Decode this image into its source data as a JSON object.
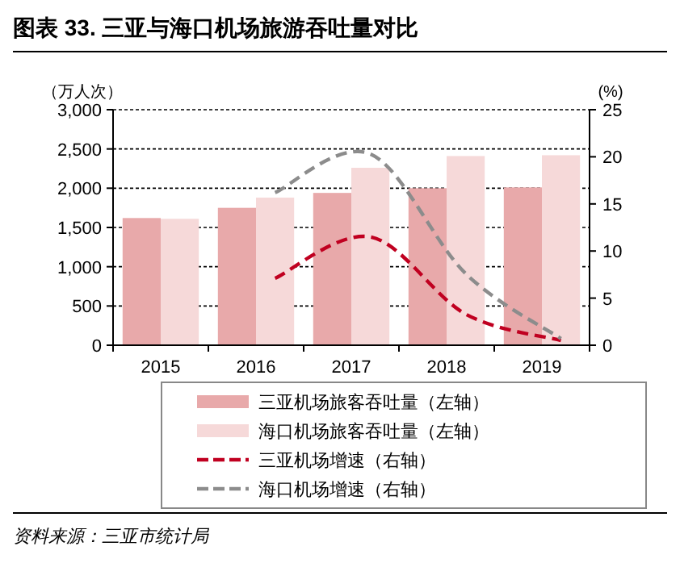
{
  "chart_data": {
    "type": "bar",
    "title": "图表 33. 三亚与海口机场旅游吞吐量对比",
    "ylabel": "（万人次）",
    "y2label": "(%)",
    "categories": [
      "2015",
      "2016",
      "2017",
      "2018",
      "2019"
    ],
    "series": [
      {
        "name": "三亚机场旅客吞吐量（左轴）",
        "color": "#e8a9aa",
        "values": [
          1620,
          1750,
          1940,
          2000,
          2010
        ]
      },
      {
        "name": "海口机场旅客吞吐量（左轴）",
        "color": "#f6d9d9",
        "values": [
          1610,
          1880,
          2260,
          2410,
          2420
        ]
      },
      {
        "name": "三亚机场增速（右轴）",
        "type": "line",
        "axis": "y2",
        "line_style": "dashed",
        "color": "#c00020",
        "values": [
          null,
          7.1,
          11.5,
          3.3,
          0.5
        ]
      },
      {
        "name": "海口机场增速（右轴）",
        "type": "line",
        "axis": "y2",
        "line_style": "dashed",
        "color": "#8c8c8c",
        "values": [
          null,
          16.2,
          20.3,
          7.6,
          0.7
        ]
      }
    ],
    "ylim": [
      0,
      3000
    ],
    "yticks": [
      {
        "value": 0,
        "label": "0"
      },
      {
        "value": 500,
        "label": "500"
      },
      {
        "value": 1000,
        "label": "1,000"
      },
      {
        "value": 1500,
        "label": "1,500"
      },
      {
        "value": 2000,
        "label": "2,000"
      },
      {
        "value": 2500,
        "label": "2,500"
      },
      {
        "value": 3000,
        "label": "3,000"
      }
    ],
    "y2lim": [
      0,
      25
    ],
    "y2ticks": [
      0,
      5,
      10,
      15,
      20,
      25
    ],
    "grid": "y",
    "legend": "bottom",
    "annotations": [
      "资料来源：三亚市统计局"
    ]
  }
}
